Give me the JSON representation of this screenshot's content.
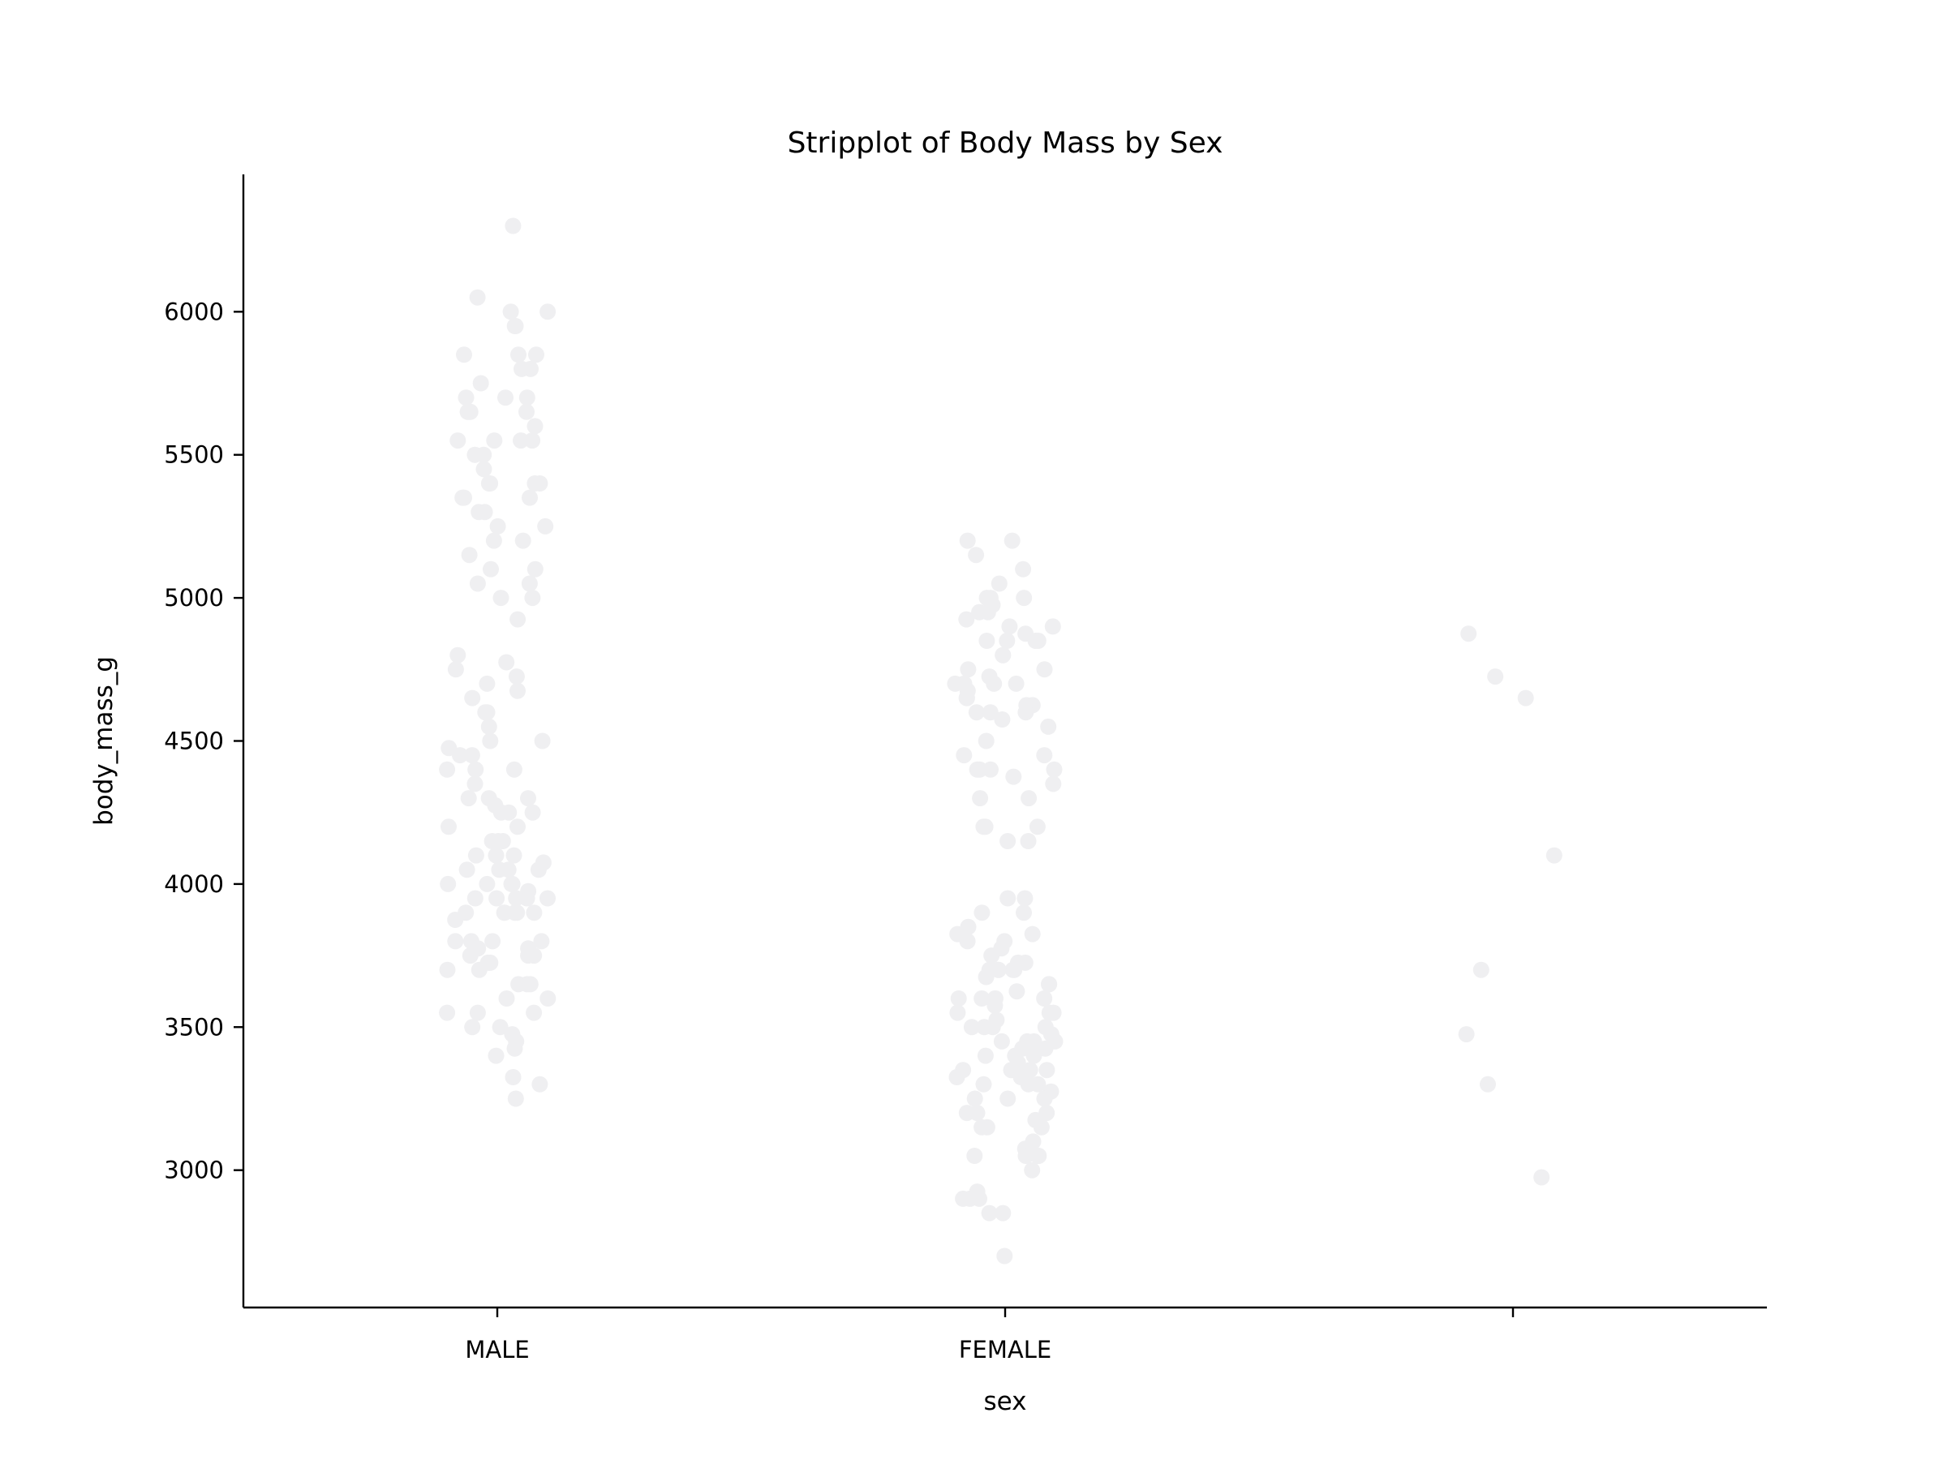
{
  "chart_data": {
    "type": "scatter",
    "subtype": "stripplot",
    "title": "Stripplot of Body Mass by Sex",
    "xlabel": "sex",
    "ylabel": "body_mass_g",
    "categories": [
      "MALE",
      "FEMALE",
      ""
    ],
    "yticks": [
      3000,
      3500,
      4000,
      4500,
      5000,
      5500,
      6000
    ],
    "ylim": [
      2520,
      6480
    ],
    "grid": false,
    "legend": "none",
    "point_color": "#efeff1",
    "series": [
      {
        "category": "MALE",
        "values": [
          6300,
          6050,
          6000,
          6000,
          5950,
          5950,
          5850,
          5850,
          5850,
          5800,
          5800,
          5750,
          5700,
          5700,
          5700,
          5650,
          5650,
          5650,
          5600,
          5550,
          5550,
          5550,
          5550,
          5500,
          5500,
          5450,
          5400,
          5400,
          5400,
          5400,
          5350,
          5350,
          5350,
          5300,
          5300,
          5250,
          5250,
          5200,
          5200,
          5150,
          5100,
          5100,
          5050,
          5050,
          5000,
          5000,
          4925,
          4800,
          4775,
          4750,
          4725,
          4700,
          4675,
          4650,
          4600,
          4600,
          4550,
          4500,
          4500,
          4475,
          4450,
          4450,
          4400,
          4400,
          4400,
          4350,
          4300,
          4300,
          4300,
          4275,
          4250,
          4250,
          4250,
          4200,
          4200,
          4150,
          4150,
          4150,
          4100,
          4100,
          4100,
          4075,
          4050,
          4050,
          4050,
          4050,
          4000,
          4000,
          4000,
          4000,
          3975,
          3950,
          3950,
          3950,
          3950,
          3950,
          3900,
          3900,
          3900,
          3900,
          3900,
          3900,
          3875,
          3800,
          3800,
          3800,
          3800,
          3775,
          3775,
          3750,
          3750,
          3750,
          3725,
          3725,
          3700,
          3700,
          3650,
          3650,
          3650,
          3600,
          3600,
          3550,
          3550,
          3550,
          3500,
          3500,
          3475,
          3450,
          3425,
          3400,
          3325,
          3300,
          3250
        ]
      },
      {
        "category": "FEMALE",
        "values": [
          5200,
          5200,
          5150,
          5100,
          5050,
          5000,
          5000,
          5000,
          4975,
          4950,
          4950,
          4925,
          4900,
          4900,
          4875,
          4850,
          4850,
          4850,
          4850,
          4800,
          4800,
          4750,
          4750,
          4725,
          4700,
          4700,
          4700,
          4700,
          4675,
          4650,
          4650,
          4625,
          4625,
          4600,
          4600,
          4600,
          4575,
          4550,
          4500,
          4450,
          4450,
          4400,
          4400,
          4400,
          4400,
          4375,
          4350,
          4300,
          4300,
          4200,
          4200,
          4200,
          4150,
          4150,
          3950,
          3950,
          3900,
          3900,
          3850,
          3825,
          3825,
          3800,
          3800,
          3775,
          3750,
          3725,
          3725,
          3700,
          3700,
          3700,
          3700,
          3700,
          3675,
          3650,
          3650,
          3625,
          3600,
          3600,
          3600,
          3600,
          3600,
          3575,
          3550,
          3550,
          3550,
          3525,
          3500,
          3500,
          3500,
          3500,
          3475,
          3450,
          3450,
          3450,
          3450,
          3425,
          3425,
          3400,
          3400,
          3400,
          3375,
          3350,
          3350,
          3350,
          3350,
          3325,
          3325,
          3300,
          3300,
          3300,
          3275,
          3250,
          3250,
          3250,
          3200,
          3200,
          3200,
          3175,
          3150,
          3150,
          3150,
          3100,
          3075,
          3050,
          3050,
          3050,
          3050,
          3000,
          2925,
          2900,
          2900,
          2900,
          2850,
          2850,
          2700
        ]
      },
      {
        "category": "",
        "values": [
          4875,
          4725,
          4650,
          4100,
          3700,
          3475,
          3300,
          2975
        ]
      }
    ]
  }
}
